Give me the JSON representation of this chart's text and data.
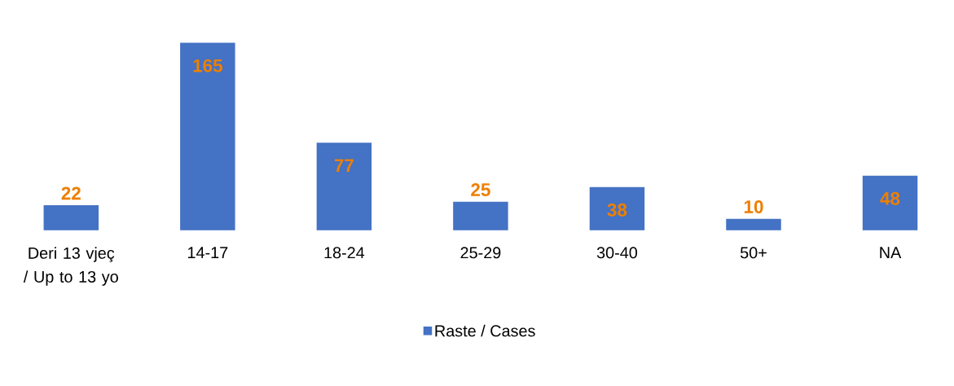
{
  "chart_data": {
    "type": "bar",
    "categories": [
      "Deri 13 vjeç / Up to 13 yo",
      "14-17",
      "18-24",
      "25-29",
      "30-40",
      "50+",
      "NA"
    ],
    "series": [
      {
        "name": "Raste / Cases",
        "color": "#4472c4",
        "values": [
          22,
          165,
          77,
          25,
          38,
          10,
          48
        ]
      }
    ],
    "data_labels": true,
    "legend": "bottom"
  }
}
